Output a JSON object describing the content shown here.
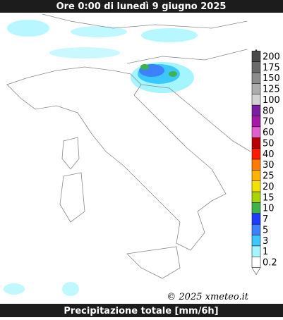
{
  "header": {
    "title": "Ore 0:00 di lunedì 9 giugno 2025"
  },
  "footer": {
    "label": "Precipitazione totale [mm/6h]"
  },
  "credit": "© 2025 xmeteo.it",
  "legend": {
    "items": [
      {
        "label": "200",
        "color": "#4a4a4a"
      },
      {
        "label": "175",
        "color": "#6a6a6a"
      },
      {
        "label": "150",
        "color": "#8c8c8c"
      },
      {
        "label": "125",
        "color": "#adadad"
      },
      {
        "label": "100",
        "color": "#d2d2d2"
      },
      {
        "label": "80",
        "color": "#7a1fa0"
      },
      {
        "label": "70",
        "color": "#a818a8"
      },
      {
        "label": "60",
        "color": "#e060d0"
      },
      {
        "label": "50",
        "color": "#b80000"
      },
      {
        "label": "40",
        "color": "#ff1a00"
      },
      {
        "label": "30",
        "color": "#ff7a00"
      },
      {
        "label": "25",
        "color": "#ffb400"
      },
      {
        "label": "20",
        "color": "#f2e200"
      },
      {
        "label": "15",
        "color": "#a8d400"
      },
      {
        "label": "10",
        "color": "#3cb44a"
      },
      {
        "label": "7",
        "color": "#1e3cff"
      },
      {
        "label": "5",
        "color": "#3c82ff"
      },
      {
        "label": "3",
        "color": "#3cc8ff"
      },
      {
        "label": "1",
        "color": "#a5f5ff"
      },
      {
        "label": "0.2",
        "color": "#ffffff"
      }
    ]
  }
}
